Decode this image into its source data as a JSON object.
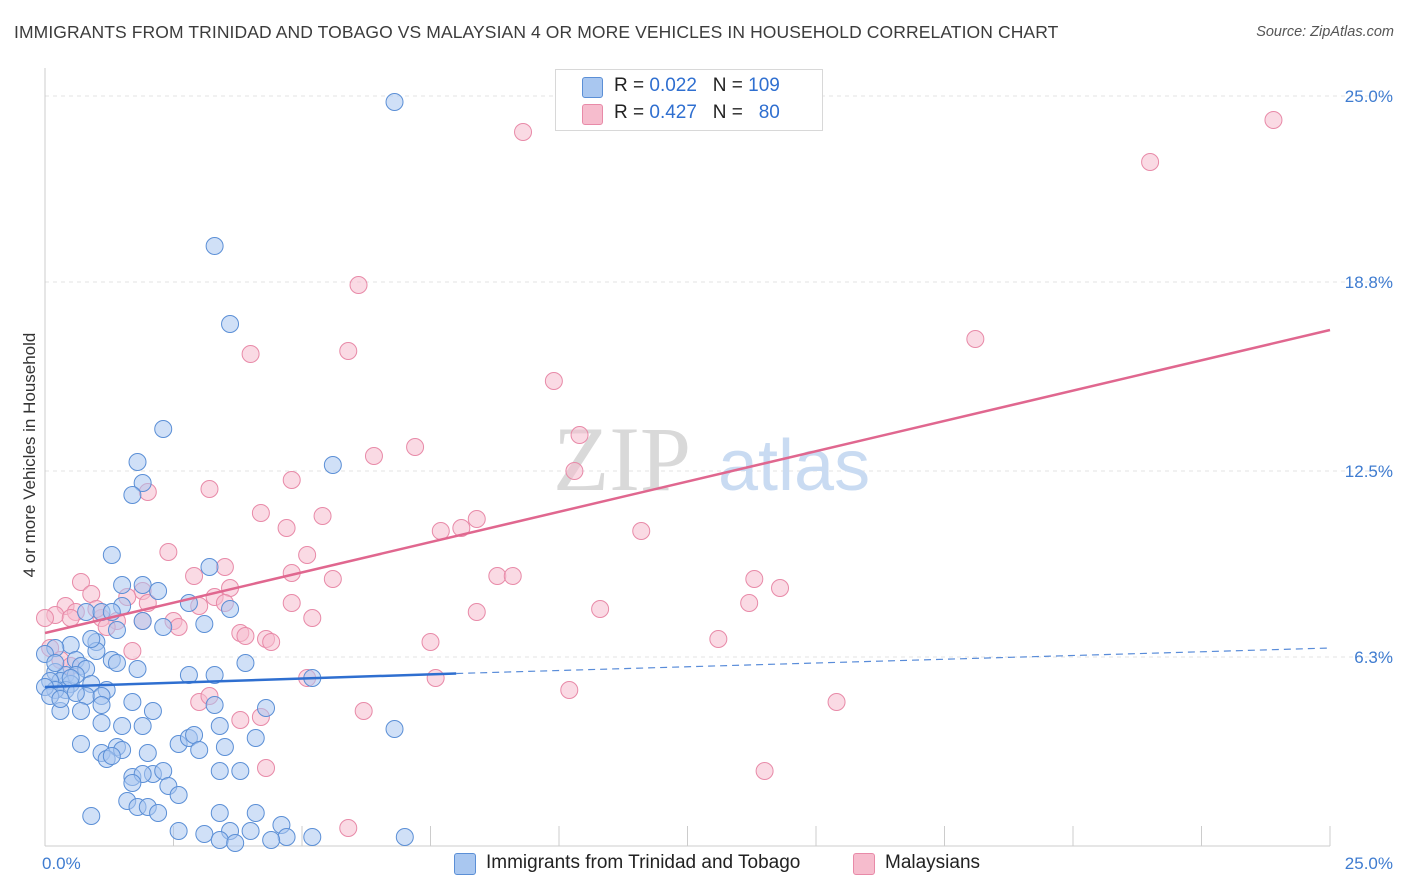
{
  "title": "IMMIGRANTS FROM TRINIDAD AND TOBAGO VS MALAYSIAN 4 OR MORE VEHICLES IN HOUSEHOLD CORRELATION CHART",
  "source": "Source: ZipAtlas.com",
  "watermark": {
    "zip": "ZIP",
    "atlas": "atlas"
  },
  "legend": {
    "r_label": "R =",
    "n_label": "N =",
    "series": [
      {
        "r": "0.022",
        "n": "109"
      },
      {
        "r": "0.427",
        "n": "80"
      }
    ]
  },
  "colors": {
    "blue_fill": "#a9c7f0",
    "blue_stroke": "#5b8fd6",
    "blue_line": "#2f6fd0",
    "pink_fill": "#f6bccd",
    "pink_stroke": "#e88aa8",
    "pink_line": "#e0678f",
    "grid": "#e3e3e3",
    "tick_text": "#3f7cd0"
  },
  "chart_data": {
    "type": "scatter",
    "title": "IMMIGRANTS FROM TRINIDAD AND TOBAGO VS MALAYSIAN 4 OR MORE VEHICLES IN HOUSEHOLD CORRELATION CHART",
    "xlabel": "",
    "ylabel": "4 or more Vehicles in Household",
    "xlim": [
      0,
      25
    ],
    "ylim": [
      0,
      25.6
    ],
    "x_tick_labels": [
      "0.0%",
      "25.0%"
    ],
    "y_ticks": [
      6.3,
      12.5,
      18.8,
      25.0
    ],
    "y_tick_labels": [
      "6.3%",
      "12.5%",
      "18.8%",
      "25.0%"
    ],
    "grid": true,
    "legend_position": "top-center",
    "series": [
      {
        "name": "Immigrants from Trinidad and Tobago",
        "color": "#a9c7f0",
        "r": 0.022,
        "n": 109,
        "trend": {
          "x": [
            0,
            8.0
          ],
          "y": [
            5.3,
            5.75
          ],
          "dashed_to": [
            25,
            6.6
          ]
        },
        "points": [
          [
            6.8,
            24.8
          ],
          [
            3.3,
            20.0
          ],
          [
            3.6,
            17.4
          ],
          [
            2.3,
            13.9
          ],
          [
            1.8,
            12.8
          ],
          [
            1.9,
            12.1
          ],
          [
            1.7,
            11.7
          ],
          [
            5.6,
            12.7
          ],
          [
            1.3,
            9.7
          ],
          [
            3.2,
            9.3
          ],
          [
            1.5,
            8.7
          ],
          [
            1.9,
            8.7
          ],
          [
            2.2,
            8.5
          ],
          [
            1.5,
            8.0
          ],
          [
            3.6,
            7.9
          ],
          [
            0.8,
            7.8
          ],
          [
            1.1,
            7.8
          ],
          [
            1.3,
            7.8
          ],
          [
            2.8,
            8.1
          ],
          [
            1.9,
            7.5
          ],
          [
            2.3,
            7.3
          ],
          [
            3.1,
            7.4
          ],
          [
            1.0,
            6.8
          ],
          [
            0.5,
            6.7
          ],
          [
            0.2,
            6.6
          ],
          [
            0.0,
            6.4
          ],
          [
            0.6,
            6.2
          ],
          [
            1.3,
            6.2
          ],
          [
            1.4,
            6.1
          ],
          [
            1.0,
            6.5
          ],
          [
            0.7,
            6.0
          ],
          [
            0.8,
            5.9
          ],
          [
            0.2,
            5.8
          ],
          [
            0.4,
            5.7
          ],
          [
            0.6,
            5.7
          ],
          [
            0.3,
            5.5
          ],
          [
            0.5,
            5.4
          ],
          [
            0.1,
            5.5
          ],
          [
            0.4,
            5.2
          ],
          [
            0.2,
            5.2
          ],
          [
            0.0,
            5.3
          ],
          [
            0.9,
            5.4
          ],
          [
            1.2,
            5.2
          ],
          [
            2.8,
            5.7
          ],
          [
            3.3,
            5.7
          ],
          [
            3.9,
            6.1
          ],
          [
            5.2,
            5.6
          ],
          [
            0.1,
            5.0
          ],
          [
            0.8,
            5.0
          ],
          [
            1.1,
            5.0
          ],
          [
            1.7,
            4.8
          ],
          [
            0.3,
            4.5
          ],
          [
            0.7,
            4.5
          ],
          [
            1.1,
            4.7
          ],
          [
            2.1,
            4.5
          ],
          [
            3.3,
            4.7
          ],
          [
            4.3,
            4.6
          ],
          [
            1.1,
            4.1
          ],
          [
            1.5,
            4.0
          ],
          [
            1.9,
            4.0
          ],
          [
            3.4,
            4.0
          ],
          [
            0.7,
            3.4
          ],
          [
            1.4,
            3.3
          ],
          [
            1.5,
            3.2
          ],
          [
            2.0,
            3.1
          ],
          [
            2.6,
            3.4
          ],
          [
            2.8,
            3.6
          ],
          [
            2.9,
            3.7
          ],
          [
            3.0,
            3.2
          ],
          [
            3.5,
            3.3
          ],
          [
            4.1,
            3.6
          ],
          [
            6.8,
            3.9
          ],
          [
            1.1,
            3.1
          ],
          [
            1.2,
            2.9
          ],
          [
            1.3,
            3.0
          ],
          [
            2.1,
            2.4
          ],
          [
            1.7,
            2.3
          ],
          [
            1.9,
            2.4
          ],
          [
            2.3,
            2.5
          ],
          [
            3.4,
            2.5
          ],
          [
            3.8,
            2.5
          ],
          [
            1.7,
            2.1
          ],
          [
            2.4,
            2.0
          ],
          [
            2.6,
            1.7
          ],
          [
            1.6,
            1.5
          ],
          [
            1.8,
            1.3
          ],
          [
            2.0,
            1.3
          ],
          [
            0.9,
            1.0
          ],
          [
            3.4,
            1.1
          ],
          [
            4.1,
            1.1
          ],
          [
            2.6,
            0.5
          ],
          [
            3.1,
            0.4
          ],
          [
            3.6,
            0.5
          ],
          [
            4.0,
            0.5
          ],
          [
            4.6,
            0.7
          ],
          [
            4.7,
            0.3
          ],
          [
            5.2,
            0.3
          ],
          [
            7.0,
            0.3
          ],
          [
            3.4,
            0.2
          ],
          [
            3.7,
            0.1
          ],
          [
            4.4,
            0.2
          ],
          [
            2.2,
            1.1
          ],
          [
            0.5,
            5.6
          ],
          [
            0.6,
            5.1
          ],
          [
            0.2,
            6.1
          ],
          [
            0.9,
            6.9
          ],
          [
            1.4,
            7.2
          ],
          [
            0.3,
            4.9
          ],
          [
            1.8,
            5.9
          ]
        ]
      },
      {
        "name": "Malaysians",
        "color": "#f6bccd",
        "r": 0.427,
        "n": 80,
        "trend": {
          "x": [
            0,
            25
          ],
          "y": [
            7.1,
            17.2
          ]
        },
        "points": [
          [
            9.3,
            23.8
          ],
          [
            23.9,
            24.2
          ],
          [
            21.5,
            22.8
          ],
          [
            6.1,
            18.7
          ],
          [
            18.1,
            16.9
          ],
          [
            4.0,
            16.4
          ],
          [
            5.9,
            16.5
          ],
          [
            9.9,
            15.5
          ],
          [
            7.2,
            13.3
          ],
          [
            6.4,
            13.0
          ],
          [
            10.4,
            13.7
          ],
          [
            10.3,
            12.5
          ],
          [
            4.8,
            12.2
          ],
          [
            3.2,
            11.9
          ],
          [
            2.0,
            11.8
          ],
          [
            4.2,
            11.1
          ],
          [
            5.4,
            11.0
          ],
          [
            4.7,
            10.6
          ],
          [
            8.4,
            10.9
          ],
          [
            8.1,
            10.6
          ],
          [
            7.7,
            10.5
          ],
          [
            11.6,
            10.5
          ],
          [
            2.4,
            9.8
          ],
          [
            5.1,
            9.7
          ],
          [
            3.5,
            9.3
          ],
          [
            2.9,
            9.0
          ],
          [
            4.8,
            9.1
          ],
          [
            5.6,
            8.9
          ],
          [
            8.8,
            9.0
          ],
          [
            9.1,
            9.0
          ],
          [
            13.8,
            8.9
          ],
          [
            14.3,
            8.6
          ],
          [
            3.6,
            8.6
          ],
          [
            1.9,
            8.5
          ],
          [
            3.3,
            8.3
          ],
          [
            1.6,
            8.3
          ],
          [
            2.0,
            8.1
          ],
          [
            3.0,
            8.0
          ],
          [
            4.8,
            8.1
          ],
          [
            8.4,
            7.8
          ],
          [
            10.8,
            7.9
          ],
          [
            13.7,
            8.1
          ],
          [
            5.2,
            7.6
          ],
          [
            0.7,
            8.8
          ],
          [
            0.9,
            8.4
          ],
          [
            0.4,
            8.0
          ],
          [
            0.6,
            7.8
          ],
          [
            0.2,
            7.7
          ],
          [
            0.0,
            7.6
          ],
          [
            0.5,
            7.6
          ],
          [
            1.1,
            7.6
          ],
          [
            1.4,
            7.5
          ],
          [
            1.9,
            7.5
          ],
          [
            1.2,
            7.3
          ],
          [
            2.5,
            7.5
          ],
          [
            3.8,
            7.1
          ],
          [
            3.9,
            7.0
          ],
          [
            4.3,
            6.9
          ],
          [
            4.4,
            6.8
          ],
          [
            7.5,
            6.8
          ],
          [
            13.1,
            6.9
          ],
          [
            0.1,
            6.6
          ],
          [
            1.7,
            6.5
          ],
          [
            0.3,
            6.2
          ],
          [
            7.6,
            5.6
          ],
          [
            5.1,
            5.6
          ],
          [
            10.2,
            5.2
          ],
          [
            15.4,
            4.8
          ],
          [
            3.0,
            4.8
          ],
          [
            3.2,
            5.0
          ],
          [
            3.8,
            4.2
          ],
          [
            4.2,
            4.3
          ],
          [
            6.2,
            4.5
          ],
          [
            4.3,
            2.6
          ],
          [
            14.0,
            2.5
          ],
          [
            5.9,
            0.6
          ],
          [
            0.5,
            6.0
          ],
          [
            2.6,
            7.3
          ],
          [
            3.5,
            8.1
          ],
          [
            1.0,
            7.9
          ]
        ]
      }
    ]
  },
  "bottom_legend": [
    {
      "label": "Immigrants from Trinidad and Tobago"
    },
    {
      "label": "Malaysians"
    }
  ]
}
